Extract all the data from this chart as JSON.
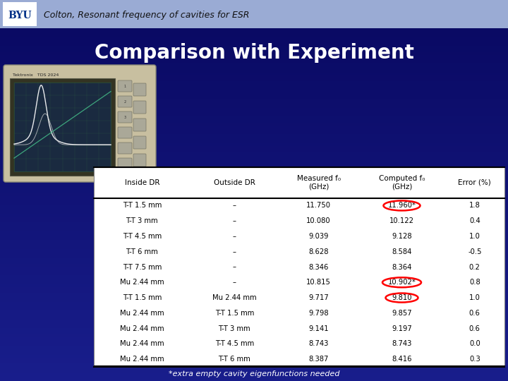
{
  "title_header": "Colton, Resonant frequency of cavities for ESR",
  "slide_title": "Comparison with Experiment",
  "footnote": "*extra empty cavity eigenfunctions needed",
  "header_bg": "#9aafe0",
  "bg_top": "#0a0a6a",
  "bg_bottom": "#1a2a8a",
  "table_headers": [
    "Inside DR",
    "Outside DR",
    "Measured f₀\n(GHz)",
    "Computed f₀\n(GHz)",
    "Error (%)"
  ],
  "table_rows": [
    [
      "T-T 1.5 mm",
      "–",
      "11.750",
      "11.960*",
      "1.8"
    ],
    [
      "T-T 3 mm",
      "–",
      "10.080",
      "10.122",
      "0.4"
    ],
    [
      "T-T 4.5 mm",
      "–",
      "9.039",
      "9.128",
      "1.0"
    ],
    [
      "T-T 6 mm",
      "–",
      "8.628",
      "8.584",
      "-0.5"
    ],
    [
      "T-T 7.5 mm",
      "–",
      "8.346",
      "8.364",
      "0.2"
    ],
    [
      "Mu 2.44 mm",
      "–",
      "10.815",
      "10.902*",
      "0.8"
    ],
    [
      "T-T 1.5 mm",
      "Mu 2.44 mm",
      "9.717",
      "9.810",
      "1.0"
    ],
    [
      "Mu 2.44 mm",
      "T-T 1.5 mm",
      "9.798",
      "9.857",
      "0.6"
    ],
    [
      "Mu 2.44 mm",
      "T-T 3 mm",
      "9.141",
      "9.197",
      "0.6"
    ],
    [
      "Mu 2.44 mm",
      "T-T 4.5 mm",
      "8.743",
      "8.743",
      "0.0"
    ],
    [
      "Mu 2.44 mm",
      "T-T 6 mm",
      "8.387",
      "8.416",
      "0.3"
    ]
  ],
  "scope_body_color": "#c8bfa0",
  "scope_screen_color": "#1a2a40",
  "scope_grid_color": "#2a5a44",
  "logo_bg": "#ffffff",
  "logo_text_color": "#003087"
}
